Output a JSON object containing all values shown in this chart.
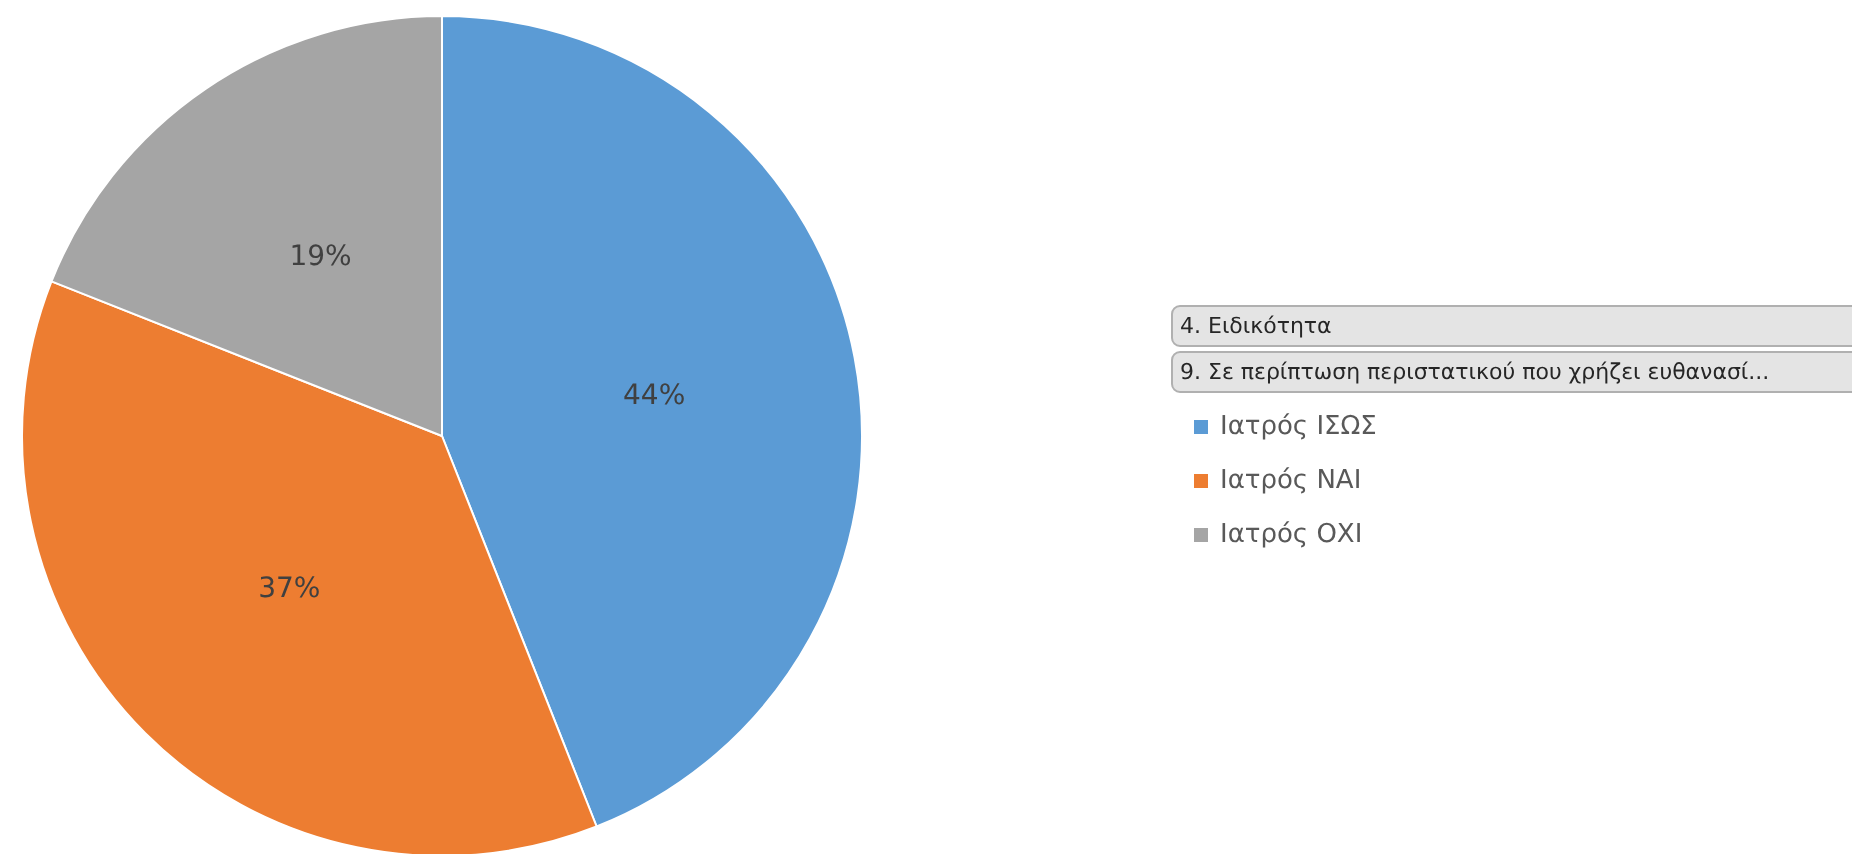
{
  "chart_data": {
    "type": "pie",
    "categories": [
      "Ιατρός ΙΣΩΣ",
      "Ιατρός ΝΑΙ",
      "Ιατρός ΟΧΙ"
    ],
    "values": [
      44,
      37,
      19
    ],
    "value_labels": [
      "44%",
      "37%",
      "19%"
    ],
    "colors": [
      "#5b9bd5",
      "#ed7d31",
      "#a5a5a5"
    ],
    "legend": "right",
    "legend_title": "9. Σε περίπτωση περιστατικού που χρήζει ευθανασί...",
    "annotations": [
      "4. Ειδικότητα"
    ]
  }
}
